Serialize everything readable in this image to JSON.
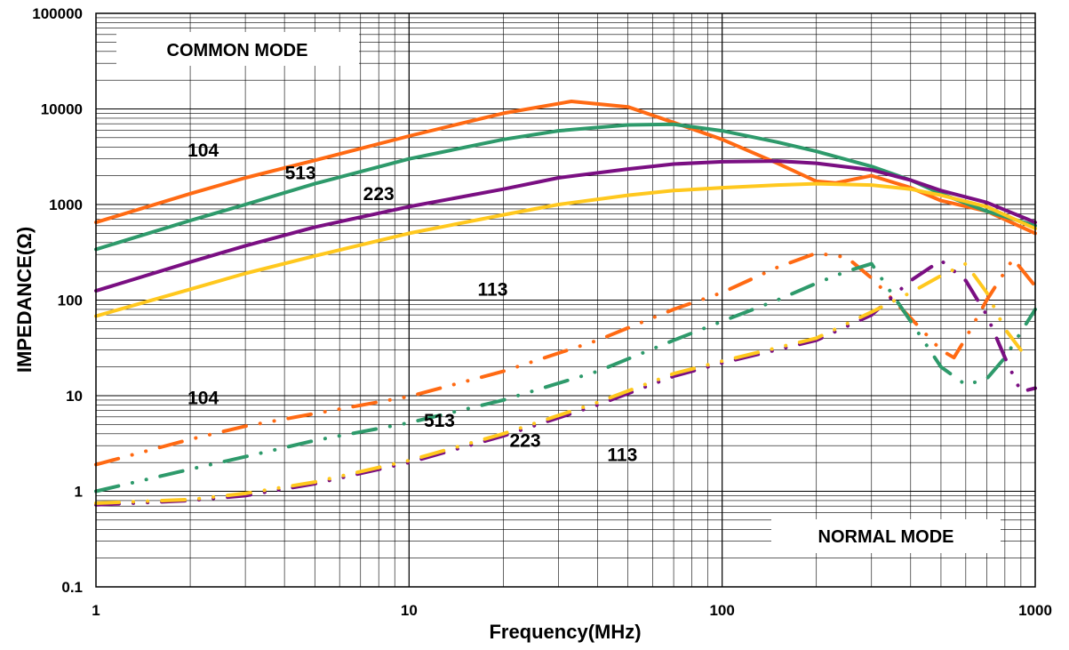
{
  "chart_data": {
    "type": "line",
    "title": "",
    "xlabel": "Frequency(MHz)",
    "ylabel": "IMPEDANCE(Ω)",
    "xscale": "log",
    "yscale": "log",
    "xlim": [
      1,
      1000
    ],
    "ylim": [
      0.1,
      100000
    ],
    "grid": true,
    "x_ticks": [
      "1",
      "10",
      "100",
      "1000"
    ],
    "y_ticks": [
      "0.1",
      "1",
      "10",
      "100",
      "1000",
      "10000",
      "100000"
    ],
    "mode_labels": {
      "common": "COMMON MODE",
      "normal": "NORMAL MODE"
    },
    "series": [
      {
        "name": "104",
        "mode": "common",
        "color": "#ff6a13",
        "x": [
          1,
          2,
          3,
          5,
          10,
          20,
          33,
          50,
          70,
          100,
          150,
          200,
          230,
          300,
          400,
          500,
          700,
          1000
        ],
        "y": [
          650,
          1300,
          1900,
          2900,
          5200,
          9000,
          12000,
          10500,
          7200,
          4800,
          2700,
          1750,
          1680,
          2000,
          1500,
          1100,
          850,
          500
        ]
      },
      {
        "name": "513",
        "mode": "common",
        "color": "#2e9a6b",
        "x": [
          1,
          2,
          3,
          5,
          10,
          20,
          30,
          50,
          70,
          100,
          150,
          200,
          300,
          400,
          500,
          700,
          1000
        ],
        "y": [
          340,
          680,
          1000,
          1650,
          3000,
          4800,
          5900,
          6800,
          6900,
          5900,
          4500,
          3600,
          2500,
          1800,
          1300,
          850,
          600
        ]
      },
      {
        "name": "223",
        "mode": "common",
        "color": "#7a0f82",
        "x": [
          1,
          2,
          3,
          5,
          10,
          20,
          30,
          50,
          70,
          100,
          150,
          200,
          300,
          400,
          500,
          700,
          1000
        ],
        "y": [
          125,
          250,
          370,
          580,
          950,
          1450,
          1900,
          2350,
          2650,
          2800,
          2850,
          2700,
          2300,
          1800,
          1400,
          1050,
          650
        ]
      },
      {
        "name": "113",
        "mode": "common",
        "color": "#ffc81e",
        "x": [
          1,
          2,
          3,
          5,
          10,
          20,
          30,
          50,
          70,
          100,
          150,
          200,
          300,
          400,
          500,
          700,
          1000
        ],
        "y": [
          68,
          130,
          190,
          290,
          500,
          780,
          1000,
          1250,
          1400,
          1500,
          1600,
          1650,
          1600,
          1450,
          1250,
          950,
          560
        ]
      },
      {
        "name": "104",
        "mode": "normal",
        "color": "#ff6a13",
        "x": [
          1,
          2,
          3,
          5,
          10,
          20,
          40,
          70,
          100,
          150,
          200,
          250,
          300,
          400,
          500,
          550,
          600,
          700,
          850,
          1000
        ],
        "y": [
          1.9,
          3.5,
          4.8,
          6.5,
          9.8,
          18,
          38,
          80,
          120,
          220,
          310,
          280,
          170,
          65,
          30,
          25,
          40,
          100,
          270,
          140
        ]
      },
      {
        "name": "513",
        "mode": "normal",
        "color": "#2e9a6b",
        "x": [
          1,
          2,
          3,
          5,
          10,
          20,
          40,
          70,
          100,
          150,
          200,
          250,
          300,
          400,
          500,
          600,
          700,
          800,
          1000
        ],
        "y": [
          1.0,
          1.7,
          2.3,
          3.4,
          5.2,
          9,
          18,
          38,
          60,
          100,
          150,
          200,
          240,
          60,
          20,
          13,
          15,
          25,
          80
        ]
      },
      {
        "name": "223",
        "mode": "normal",
        "color": "#7a0f82",
        "x": [
          1,
          2,
          3,
          5,
          10,
          20,
          40,
          70,
          100,
          200,
          300,
          400,
          500,
          600,
          700,
          800,
          900,
          1000
        ],
        "y": [
          0.72,
          0.8,
          0.9,
          1.2,
          2.0,
          3.8,
          8,
          16,
          22,
          38,
          70,
          160,
          260,
          160,
          70,
          25,
          11,
          12
        ]
      },
      {
        "name": "113",
        "mode": "normal",
        "color": "#ffc81e",
        "x": [
          1,
          2,
          3,
          5,
          10,
          20,
          40,
          70,
          100,
          200,
          300,
          400,
          500,
          600,
          700,
          800,
          900
        ],
        "y": [
          0.75,
          0.82,
          0.95,
          1.25,
          2.1,
          4.0,
          8.5,
          17,
          23,
          40,
          75,
          120,
          180,
          240,
          120,
          50,
          30
        ]
      }
    ],
    "annotations": [
      {
        "text": "104",
        "x": 2.2,
        "y": 3700
      },
      {
        "text": "513",
        "x": 4.5,
        "y": 2150
      },
      {
        "text": "223",
        "x": 8.0,
        "y": 1300
      },
      {
        "text": "113",
        "x": 18.5,
        "y": 130
      },
      {
        "text": "104",
        "x": 2.2,
        "y": 9.5
      },
      {
        "text": "513",
        "x": 12.5,
        "y": 5.5
      },
      {
        "text": "223",
        "x": 23.5,
        "y": 3.4
      },
      {
        "text": "113",
        "x": 48,
        "y": 2.4
      }
    ]
  }
}
